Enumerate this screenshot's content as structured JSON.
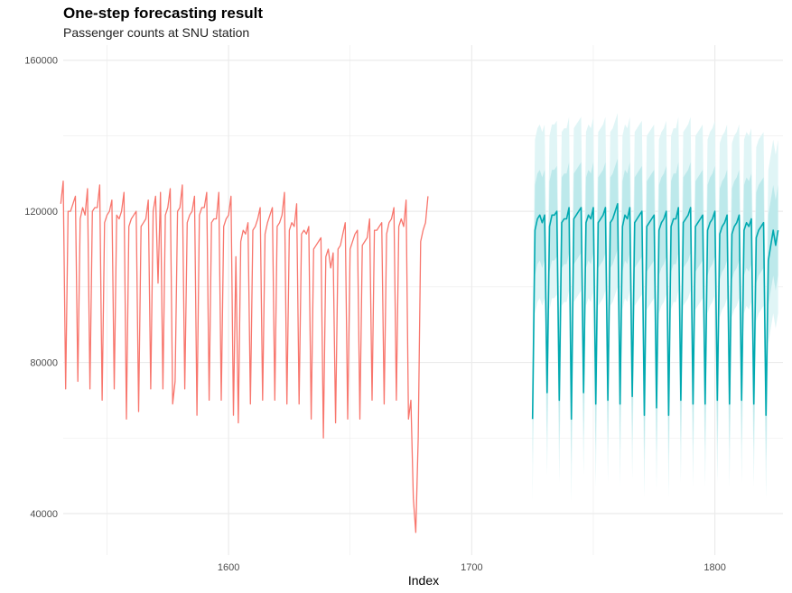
{
  "chart_data": {
    "type": "line",
    "title": "One-step forecasting result",
    "subtitle": "Passenger counts at SNU station",
    "xlabel": "Index",
    "ylabel": "",
    "xlim": [
      1532,
      1828
    ],
    "ylim": [
      29000,
      164000
    ],
    "x_ticks": [
      1600,
      1700,
      1800
    ],
    "y_ticks": [
      40000,
      80000,
      120000,
      160000
    ],
    "grid": true,
    "legend": "none",
    "colors": {
      "history": "#F8766D",
      "actual_test": "#808080",
      "forecast": "#00A9B0",
      "interval_80": "#BDE9EB",
      "interval_95": "#E0F5F6",
      "grid": "#EBEBEB"
    },
    "history_start": 1531,
    "history_values": [
      122000,
      128000,
      73000,
      120000,
      120000,
      122000,
      124000,
      75000,
      118000,
      121000,
      119000,
      126000,
      73000,
      120000,
      121000,
      121000,
      127000,
      70000,
      117000,
      119000,
      120000,
      123000,
      73000,
      119000,
      118000,
      120000,
      125000,
      65000,
      116000,
      118000,
      119000,
      120000,
      67000,
      116000,
      117000,
      118000,
      123000,
      73000,
      120000,
      124000,
      101000,
      125000,
      73000,
      119000,
      121000,
      126000,
      69000,
      75000,
      120000,
      121000,
      127000,
      73000,
      117000,
      119000,
      120000,
      124000,
      66000,
      119000,
      121000,
      121000,
      125000,
      70000,
      117000,
      118000,
      118000,
      125000,
      70000,
      116000,
      118000,
      119000,
      124000,
      66000,
      108000,
      64000,
      112000,
      115000,
      114000,
      117000,
      69000,
      115000,
      116000,
      118000,
      121000,
      70000,
      114000,
      117000,
      119000,
      121000,
      70000,
      116000,
      117000,
      119000,
      125000,
      69000,
      115000,
      117000,
      116000,
      122000,
      69000,
      114000,
      115000,
      114000,
      116000,
      65000,
      110000,
      111000,
      112000,
      113000,
      60000,
      108000,
      110000,
      105000,
      109000,
      64000,
      110000,
      111000,
      114000,
      117000,
      65000,
      110000,
      112000,
      114000,
      115000,
      65000,
      111000,
      112000,
      113000,
      118000,
      70000,
      115000,
      115000,
      116000,
      117000,
      69000,
      114000,
      117000,
      118000,
      121000,
      70000,
      116000,
      118000,
      116000,
      123000,
      65000,
      70000,
      44000,
      35000,
      60000,
      112000,
      115000,
      117000,
      124000
    ],
    "forecast_start": 1725,
    "forecast_values": [
      65000,
      115000,
      118000,
      119000,
      117000,
      119000,
      72000,
      116000,
      119000,
      119000,
      120000,
      70000,
      117000,
      118000,
      118000,
      121000,
      65000,
      118000,
      119000,
      120000,
      121000,
      72000,
      117000,
      119000,
      118000,
      121000,
      69000,
      117000,
      118000,
      119000,
      121000,
      70000,
      117000,
      118000,
      120000,
      122000,
      69000,
      116000,
      119000,
      118000,
      121000,
      71000,
      117000,
      118000,
      119000,
      120000,
      66000,
      116000,
      117000,
      118000,
      119000,
      68000,
      115000,
      117000,
      118000,
      120000,
      66000,
      116000,
      118000,
      118000,
      121000,
      70000,
      117000,
      118000,
      119000,
      121000,
      69000,
      116000,
      117000,
      118000,
      119000,
      69000,
      115000,
      117000,
      118000,
      120000,
      70000,
      114000,
      116000,
      117000,
      119000,
      69000,
      114000,
      116000,
      117000,
      119000,
      70000,
      115000,
      117000,
      116000,
      118000,
      69000,
      113000,
      115000,
      116000,
      117000,
      66000,
      107000,
      111000,
      115000,
      111000,
      115000
    ],
    "forecast_lo80_offset": 12000,
    "forecast_hi80_offset": 12000,
    "forecast_lo95_offset": 22000,
    "forecast_hi95_offset": 24000
  }
}
